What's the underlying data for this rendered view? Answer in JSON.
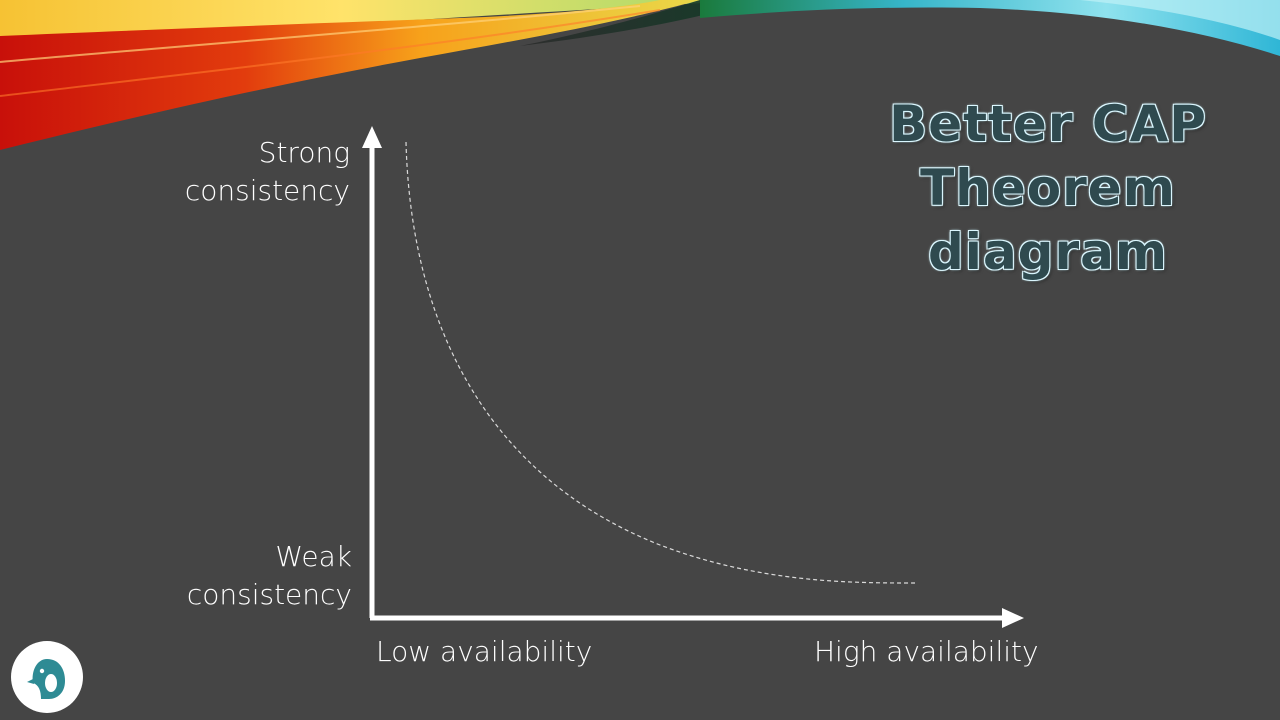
{
  "slide": {
    "title_lines": [
      "Better CAP",
      "Theorem",
      "diagram"
    ]
  },
  "axes": {
    "y_top_label_lines": [
      "Strong",
      "consistency"
    ],
    "y_bottom_label_lines": [
      "Weak",
      "consistency"
    ],
    "x_left_label": "Low availability",
    "x_right_label": "High availability"
  },
  "curve": {
    "style": "dashed",
    "description_free": true
  },
  "colors": {
    "background": "#454545",
    "axis": "#ffffff",
    "curve": "#d9d9d9",
    "title_fill": "#2f4a4f",
    "title_glow": "#dff7ff",
    "logo_teal": "#2e8b94"
  },
  "icons": {
    "logo": "penguin-logo-icon"
  }
}
